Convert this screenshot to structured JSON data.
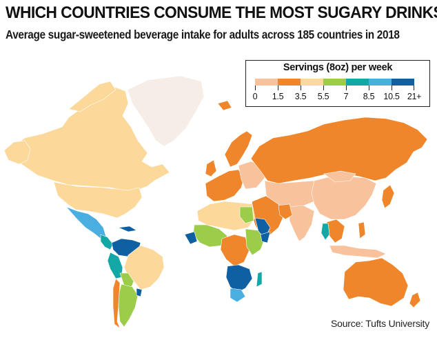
{
  "header": {
    "title": "WHICH COUNTRIES CONSUME THE MOST SUGARY DRINKS?",
    "subtitle": "Average sugar-sweetened beverage intake for adults across 185 countries in 2018"
  },
  "legend": {
    "title": "Servings (8oz) per week",
    "labels": [
      "0",
      "1.5",
      "3.5",
      "5.5",
      "7",
      "8.5",
      "10.5",
      "21+"
    ],
    "colors": [
      "#f8c39c",
      "#f0862b",
      "#fcd99a",
      "#9ccd4a",
      "#13a8a6",
      "#4aaee0",
      "#0f5fa3"
    ],
    "no_data_color": "#f6eee6"
  },
  "source": "Source: Tufts University"
}
